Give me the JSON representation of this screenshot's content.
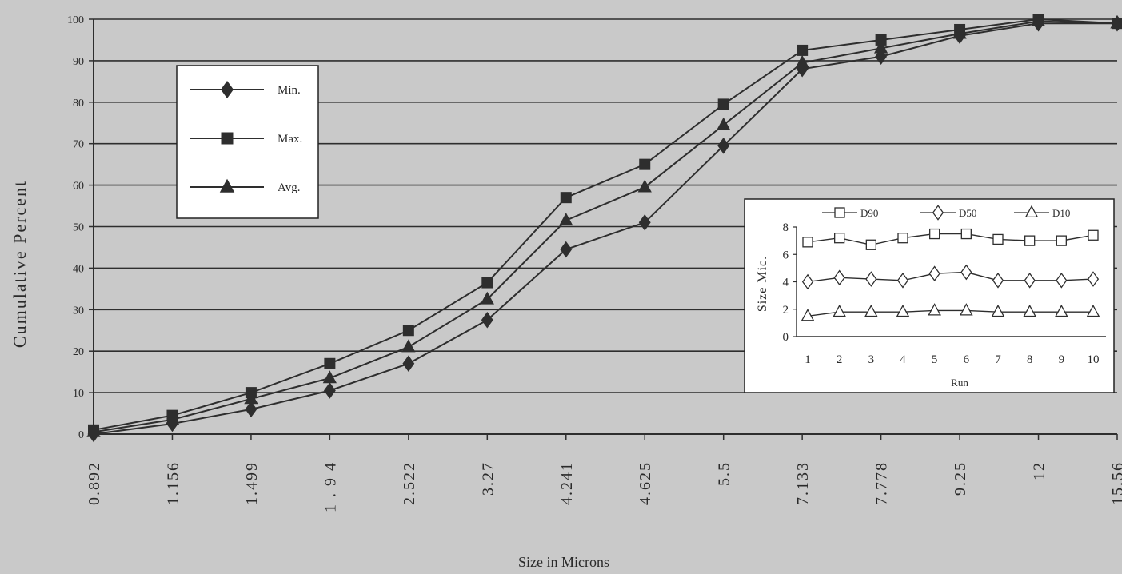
{
  "chart_data": [
    {
      "type": "line",
      "xlabel": "Size in Microns",
      "ylabel": "Cumulative Percent",
      "categories": [
        "0.892",
        "1.156",
        "1.499",
        "1 . 9 4",
        "2.522",
        "3.27",
        "4.241",
        "4.625",
        "5.5",
        "7.133",
        "7.778",
        "9.25",
        "12",
        "15.56"
      ],
      "ylim": [
        0,
        100
      ],
      "yticks": [
        "0",
        "10",
        "20",
        "30",
        "40",
        "50",
        "60",
        "70",
        "80",
        "90",
        "100"
      ],
      "grid": true,
      "legend_position": "top-left",
      "series": [
        {
          "name": "Min.",
          "marker": "diamond",
          "values": [
            0,
            2.5,
            6,
            10.5,
            17,
            27.5,
            44.5,
            51,
            69.5,
            88,
            91,
            96,
            99,
            99
          ]
        },
        {
          "name": "Max.",
          "marker": "square",
          "values": [
            1,
            4.5,
            10,
            17,
            25,
            36.5,
            57,
            65,
            79.5,
            92.5,
            95,
            97.5,
            100,
            99
          ]
        },
        {
          "name": "Avg.",
          "marker": "triangle",
          "values": [
            0.5,
            3.5,
            8.5,
            13.5,
            21,
            32.5,
            51.5,
            59.5,
            74.5,
            89.5,
            93,
            96.5,
            99.5,
            99
          ]
        }
      ]
    },
    {
      "type": "line",
      "xlabel": "Run",
      "ylabel": "Size Mic.",
      "categories": [
        "1",
        "2",
        "3",
        "4",
        "5",
        "6",
        "7",
        "8",
        "9",
        "10"
      ],
      "ylim": [
        0,
        8
      ],
      "yticks": [
        "0",
        "2",
        "4",
        "6",
        "8"
      ],
      "grid": false,
      "legend_position": "top",
      "series": [
        {
          "name": "D90",
          "marker": "open-square",
          "values": [
            6.9,
            7.2,
            6.7,
            7.2,
            7.5,
            7.5,
            7.1,
            7.0,
            7.0,
            7.4
          ]
        },
        {
          "name": "D50",
          "marker": "open-diamond",
          "values": [
            4.0,
            4.3,
            4.2,
            4.1,
            4.6,
            4.7,
            4.1,
            4.1,
            4.1,
            4.2
          ]
        },
        {
          "name": "D10",
          "marker": "open-triangle",
          "values": [
            1.5,
            1.8,
            1.8,
            1.8,
            1.9,
            1.9,
            1.8,
            1.8,
            1.8,
            1.8
          ]
        }
      ]
    }
  ]
}
